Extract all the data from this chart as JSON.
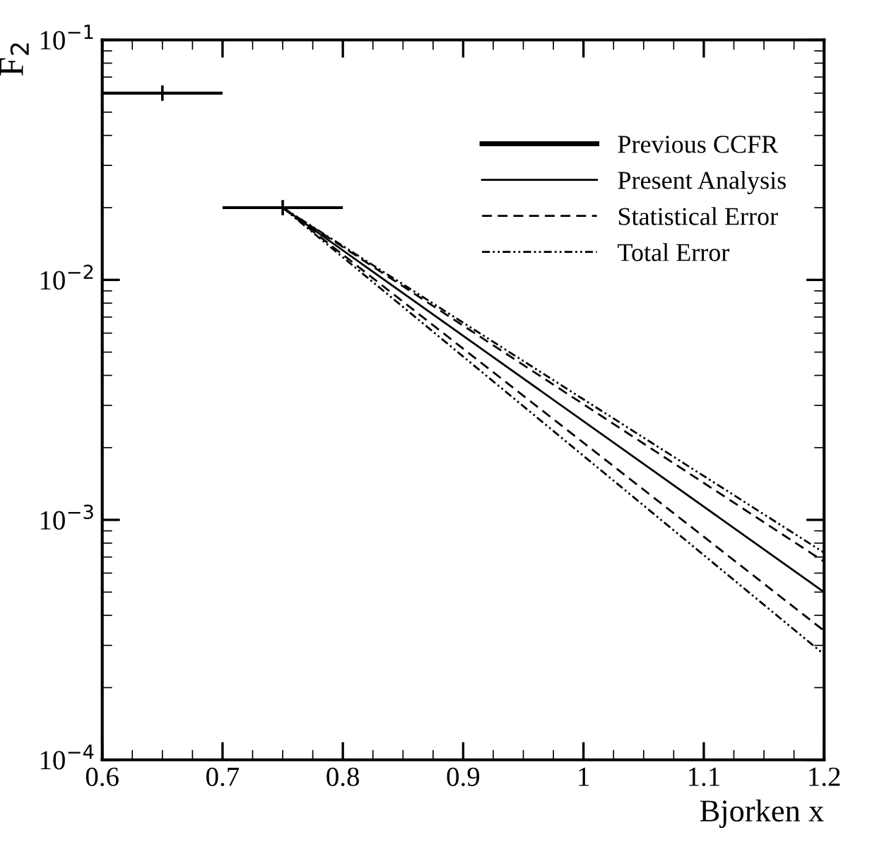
{
  "chart_data": {
    "type": "line",
    "xlabel": "Bjorken x",
    "ylabel": "F$_{2}$",
    "log": "y",
    "xlim": [
      0.6,
      1.2
    ],
    "xticks": [
      0.6,
      0.7,
      0.8,
      0.9,
      1,
      1.1,
      1.2
    ],
    "ylim": [
      0.0001,
      0.1
    ],
    "yticks": [
      {
        "value": 0.0001,
        "label": "10$^{−4}$"
      },
      {
        "value": 0.001,
        "label": "10$^{−3}$"
      },
      {
        "value": 0.01,
        "label": "10$^{−2}$"
      },
      {
        "value": 0.1,
        "label": "10$^{−1}$"
      }
    ],
    "grid": false,
    "legend": "top right",
    "series": [
      {
        "name": "Previous CCFR",
        "type": "scatter",
        "color": "#000000",
        "x": [
          0.65,
          0.75
        ],
        "values": [
          0.06,
          0.02
        ],
        "xerrors": [
          0.05,
          0.05
        ],
        "marker": "cross"
      },
      {
        "name": "Present Analysis",
        "color": "#000000",
        "x": [
          0.75,
          1.2
        ],
        "values": [
          0.02,
          0.0005
        ],
        "line_style": "solid"
      },
      {
        "name": "Statistical Error",
        "color": "#000000",
        "x": [
          0.75,
          1.2
        ],
        "values": [
          0.02,
          0.00067
        ],
        "line_style": "dashed"
      },
      {
        "color": "#000000",
        "x": [
          0.75,
          1.2
        ],
        "values": [
          0.02,
          0.000345
        ],
        "line_style": "dashed"
      },
      {
        "name": "Total Error",
        "color": "#000000",
        "x": [
          0.75,
          1.2
        ],
        "values": [
          0.02,
          0.00073
        ],
        "line_style": "dashdot"
      },
      {
        "color": "#000000",
        "x": [
          0.75,
          1.2
        ],
        "values": [
          0.02,
          0.000275
        ],
        "line_style": "dashdot"
      }
    ]
  }
}
